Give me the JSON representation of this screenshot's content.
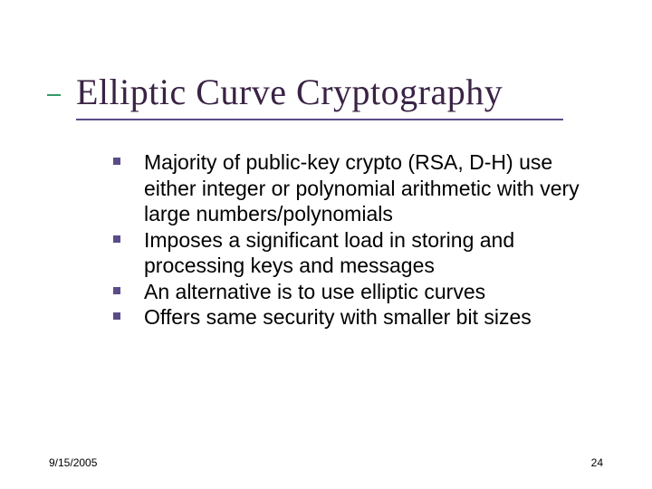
{
  "slide": {
    "title": "Elliptic Curve Cryptography",
    "title_color": "#3a2345",
    "title_fontsize": 40,
    "title_font_family": "Times New Roman",
    "underline_color": "#5b4c88",
    "accent_color": "#339966",
    "bullets": [
      "Majority of public-key crypto (RSA, D-H) use either integer or polynomial arithmetic with very large numbers/polynomials",
      "Imposes a significant load in storing and processing keys and messages",
      "An alternative is to use elliptic curves",
      "Offers same security with smaller bit sizes"
    ],
    "bullet_marker_color": "#5b4c88",
    "bullet_fontsize": 23,
    "bullet_text_color": "#000000",
    "background_color": "#ffffff"
  },
  "footer": {
    "date": "9/15/2005",
    "page_number": "24",
    "fontsize": 12,
    "text_color": "#000000"
  }
}
